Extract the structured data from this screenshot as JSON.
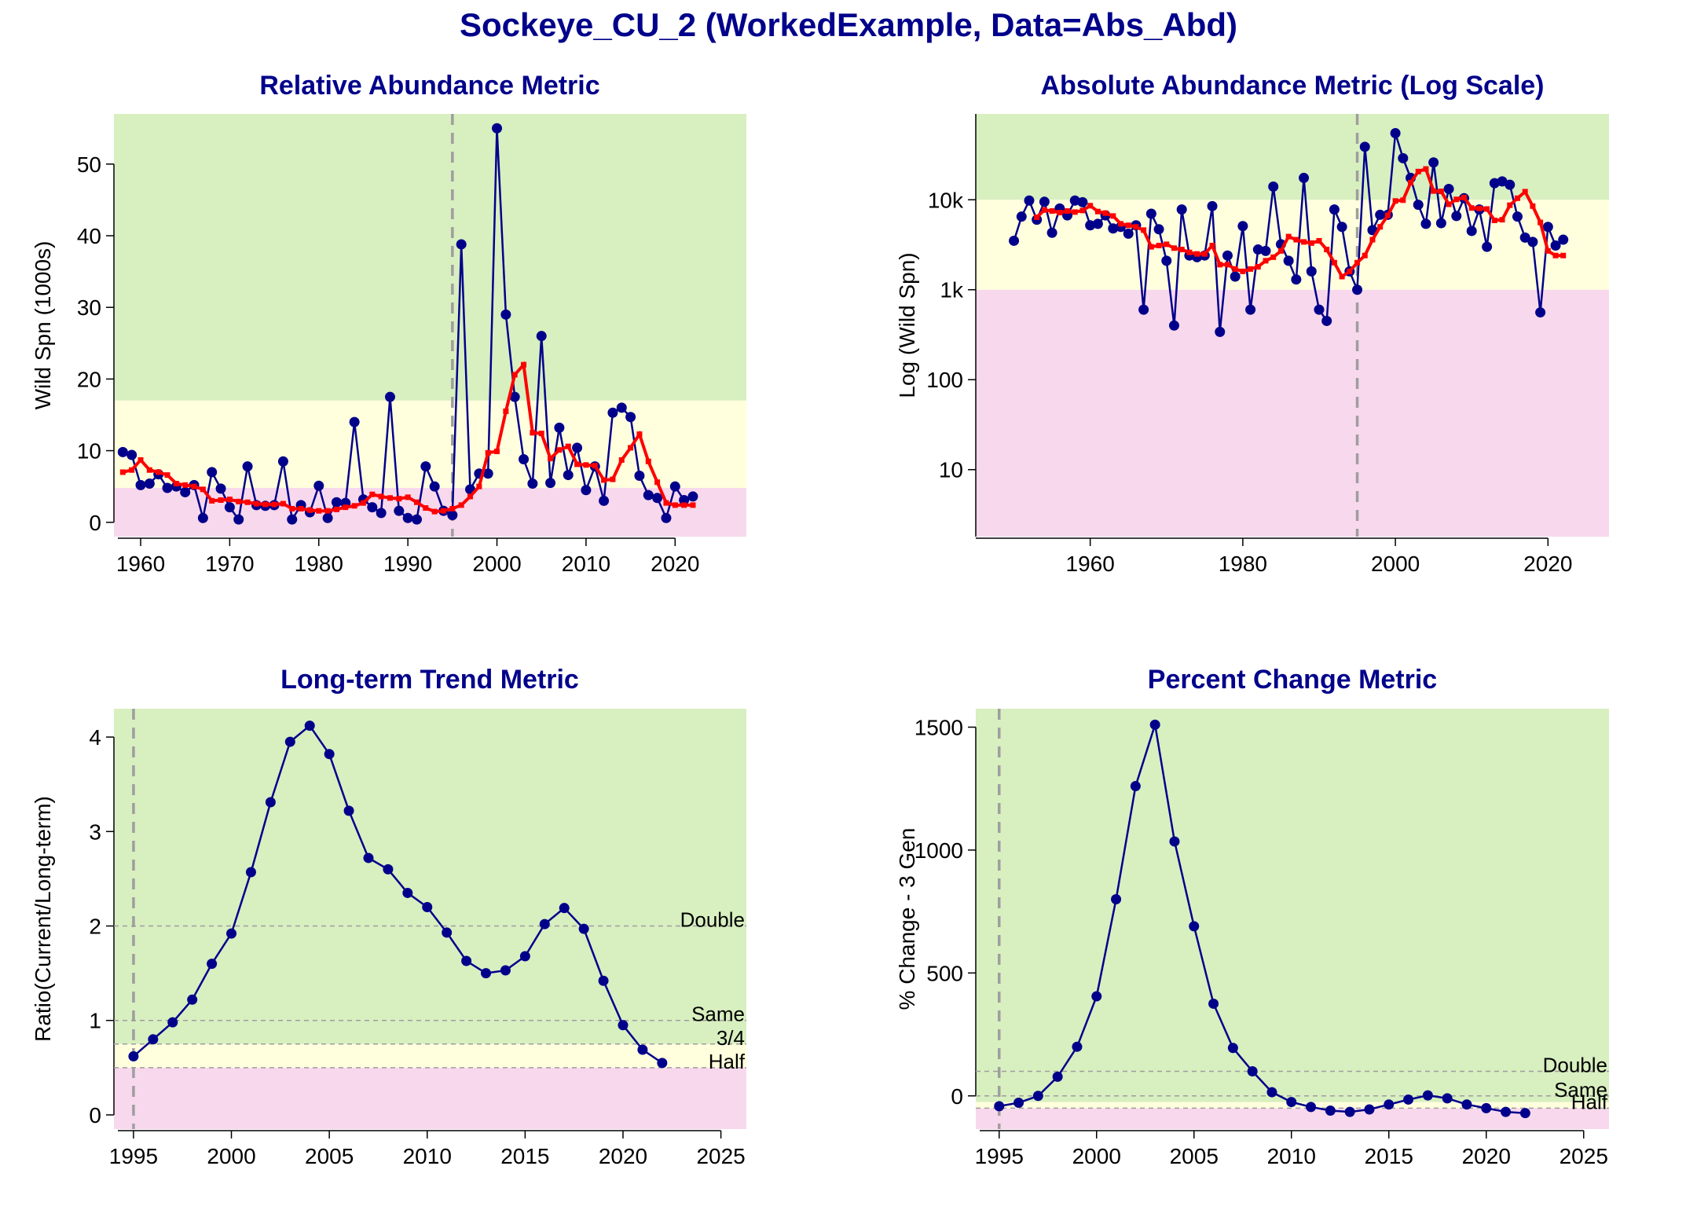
{
  "main_title": "Sockeye_CU_2 (WorkedExample, Data=Abs_Abd)",
  "colors": {
    "green_zone": "#D8EFC0",
    "amber_zone": "#FFFFDD",
    "red_zone": "#F8D8EC",
    "series_main": "#00008B",
    "series_avg": "#FF0000",
    "ref_line": "#9E9E9E",
    "title": "#00008B"
  },
  "chart_data": [
    {
      "type": "line",
      "title": "Relative Abundance Metric",
      "ylabel": "Wild Spn (1000s)",
      "xlabel": "",
      "xlim": [
        1957,
        2028
      ],
      "ylim": [
        -2,
        57
      ],
      "xticks": [
        1960,
        1970,
        1980,
        1990,
        2000,
        2010,
        2020
      ],
      "yticks": [
        0,
        10,
        20,
        30,
        40,
        50
      ],
      "zones": [
        {
          "name": "red",
          "from": -2,
          "to": 4.8
        },
        {
          "name": "amber",
          "from": 4.8,
          "to": 17
        },
        {
          "name": "green",
          "from": 17,
          "to": 57
        }
      ],
      "vline": 1995,
      "series": [
        {
          "role": "main",
          "x": [
            1958,
            1959,
            1960,
            1961,
            1962,
            1963,
            1964,
            1965,
            1966,
            1967,
            1968,
            1969,
            1970,
            1971,
            1972,
            1973,
            1974,
            1975,
            1976,
            1977,
            1978,
            1979,
            1980,
            1981,
            1982,
            1983,
            1984,
            1985,
            1986,
            1987,
            1988,
            1989,
            1990,
            1991,
            1992,
            1993,
            1994,
            1995,
            1996,
            1997,
            1998,
            1999,
            2000,
            2001,
            2002,
            2003,
            2004,
            2005,
            2006,
            2007,
            2008,
            2009,
            2010,
            2011,
            2012,
            2013,
            2014,
            2015,
            2016,
            2017,
            2018,
            2019,
            2020,
            2021,
            2022
          ],
          "values": [
            9.8,
            9.4,
            5.2,
            5.4,
            6.7,
            4.8,
            5.0,
            4.2,
            5.2,
            0.6,
            7.0,
            4.7,
            2.1,
            0.4,
            7.8,
            2.4,
            2.3,
            2.4,
            8.5,
            0.4,
            2.4,
            1.4,
            5.1,
            0.6,
            2.8,
            2.7,
            14.0,
            3.2,
            2.1,
            1.3,
            17.5,
            1.6,
            0.6,
            0.4,
            7.8,
            5.0,
            1.6,
            1.0,
            38.8,
            4.6,
            6.8,
            6.8,
            55.0,
            29.0,
            17.5,
            8.8,
            5.4,
            26.0,
            5.5,
            13.2,
            6.6,
            10.4,
            4.5,
            7.8,
            3.0,
            15.3,
            16.0,
            14.7,
            6.5,
            3.8,
            3.4,
            0.6,
            5.0,
            3.1,
            3.6
          ]
        },
        {
          "role": "average",
          "x": [
            1958,
            1959,
            1960,
            1961,
            1962,
            1963,
            1964,
            1965,
            1966,
            1967,
            1968,
            1969,
            1970,
            1971,
            1972,
            1973,
            1974,
            1975,
            1976,
            1977,
            1978,
            1979,
            1980,
            1981,
            1982,
            1983,
            1984,
            1985,
            1986,
            1987,
            1988,
            1989,
            1990,
            1991,
            1992,
            1993,
            1994,
            1995,
            1996,
            1997,
            1998,
            1999,
            2000,
            2001,
            2002,
            2003,
            2004,
            2005,
            2006,
            2007,
            2008,
            2009,
            2010,
            2011,
            2012,
            2013,
            2014,
            2015,
            2016,
            2017,
            2018,
            2019,
            2020,
            2021,
            2022
          ],
          "values": [
            7.0,
            7.3,
            8.7,
            7.3,
            7.0,
            6.6,
            5.4,
            5.2,
            5.0,
            4.6,
            3.0,
            3.1,
            3.2,
            2.9,
            2.8,
            2.6,
            2.5,
            2.5,
            2.6,
            1.9,
            1.9,
            1.7,
            1.6,
            1.6,
            1.8,
            2.1,
            2.3,
            2.7,
            3.9,
            3.6,
            3.4,
            3.3,
            3.5,
            2.8,
            2.0,
            1.5,
            1.6,
            1.9,
            2.4,
            3.6,
            5.0,
            9.7,
            9.9,
            15.5,
            20.6,
            22.0,
            12.5,
            12.4,
            8.9,
            10.1,
            10.6,
            8.1,
            8.0,
            7.9,
            5.9,
            6.0,
            8.7,
            10.4,
            12.3,
            8.5,
            5.6,
            2.7,
            2.4,
            2.4,
            2.4
          ]
        }
      ]
    },
    {
      "type": "line",
      "title": "Absolute Abundance Metric (Log Scale)",
      "ylabel": "Log (Wild Spn)",
      "xlabel": "",
      "scale": "log",
      "xlim": [
        1945,
        2028
      ],
      "ylim": [
        1.8,
        90000
      ],
      "xticks": [
        1960,
        1980,
        2000,
        2020
      ],
      "yticks": [
        10,
        100,
        1000,
        10000
      ],
      "ytick_labels": [
        "10",
        "100",
        "1k",
        "10k"
      ],
      "zones": [
        {
          "name": "red",
          "from": 1.8,
          "to": 1000
        },
        {
          "name": "amber",
          "from": 1000,
          "to": 10000
        },
        {
          "name": "green",
          "from": 10000,
          "to": 90000
        }
      ],
      "vline": 1995,
      "series": [
        {
          "role": "main",
          "x": [
            1950,
            1951,
            1952,
            1953,
            1954,
            1955,
            1956,
            1957,
            1958,
            1959,
            1960,
            1961,
            1962,
            1963,
            1964,
            1965,
            1966,
            1967,
            1968,
            1969,
            1970,
            1971,
            1972,
            1973,
            1974,
            1975,
            1976,
            1977,
            1978,
            1979,
            1980,
            1981,
            1982,
            1983,
            1984,
            1985,
            1986,
            1987,
            1988,
            1989,
            1990,
            1991,
            1992,
            1993,
            1994,
            1995,
            1996,
            1997,
            1998,
            1999,
            2000,
            2001,
            2002,
            2003,
            2004,
            2005,
            2006,
            2007,
            2008,
            2009,
            2010,
            2011,
            2012,
            2013,
            2014,
            2015,
            2016,
            2017,
            2018,
            2019,
            2020,
            2021,
            2022
          ],
          "values": [
            3500,
            6500,
            9800,
            6000,
            9500,
            4300,
            8000,
            6700,
            9800,
            9400,
            5200,
            5400,
            6700,
            4800,
            5000,
            4200,
            5200,
            600,
            7000,
            4700,
            2100,
            400,
            7800,
            2400,
            2300,
            2400,
            8500,
            340,
            2400,
            1400,
            5100,
            600,
            2800,
            2700,
            14000,
            3200,
            2100,
            1300,
            17500,
            1600,
            600,
            450,
            7800,
            5000,
            1600,
            1000,
            38800,
            4600,
            6800,
            6800,
            55000,
            29000,
            17500,
            8800,
            5400,
            26000,
            5500,
            13200,
            6600,
            10400,
            4500,
            7800,
            3000,
            15300,
            16000,
            14700,
            6500,
            3800,
            3400,
            560,
            5000,
            3100,
            3600
          ]
        },
        {
          "role": "average",
          "x": [
            1953,
            1954,
            1955,
            1956,
            1957,
            1958,
            1959,
            1960,
            1961,
            1962,
            1963,
            1964,
            1965,
            1966,
            1967,
            1968,
            1969,
            1970,
            1971,
            1972,
            1973,
            1974,
            1975,
            1976,
            1977,
            1978,
            1979,
            1980,
            1981,
            1982,
            1983,
            1984,
            1985,
            1986,
            1987,
            1988,
            1989,
            1990,
            1991,
            1992,
            1993,
            1994,
            1995,
            1996,
            1997,
            1998,
            1999,
            2000,
            2001,
            2002,
            2003,
            2004,
            2005,
            2006,
            2007,
            2008,
            2009,
            2010,
            2011,
            2012,
            2013,
            2014,
            2015,
            2016,
            2017,
            2018,
            2019,
            2020,
            2021,
            2022
          ],
          "values": [
            6400,
            7700,
            7500,
            7200,
            7500,
            7300,
            7600,
            8600,
            7400,
            7100,
            6600,
            5400,
            5200,
            5000,
            4600,
            3000,
            3100,
            3200,
            2900,
            2800,
            2600,
            2500,
            2500,
            3100,
            1900,
            1900,
            1700,
            1600,
            1700,
            1800,
            2100,
            2300,
            2700,
            3900,
            3600,
            3400,
            3300,
            3500,
            2800,
            2000,
            1400,
            1600,
            2000,
            2400,
            3600,
            5000,
            6700,
            9700,
            9900,
            15500,
            20600,
            22000,
            12500,
            12400,
            8900,
            10100,
            10600,
            8100,
            8000,
            7900,
            5900,
            6000,
            8700,
            10400,
            12300,
            8500,
            5600,
            2700,
            2400,
            2400
          ]
        }
      ]
    },
    {
      "type": "line",
      "title": "Long-term Trend Metric",
      "ylabel": "Ratio(Current/Long-term)",
      "xlabel": "",
      "xlim": [
        1994,
        2026.3
      ],
      "ylim": [
        -0.15,
        4.3
      ],
      "xticks": [
        1995,
        2000,
        2005,
        2010,
        2015,
        2020,
        2025
      ],
      "yticks": [
        0,
        1,
        2,
        3,
        4
      ],
      "zones": [
        {
          "name": "red",
          "from": -0.15,
          "to": 0.5
        },
        {
          "name": "amber",
          "from": 0.5,
          "to": 0.75
        },
        {
          "name": "green",
          "from": 0.75,
          "to": 4.3
        }
      ],
      "vline": 1995,
      "ref_lines": [
        {
          "value": 2,
          "label": "Double"
        },
        {
          "value": 1,
          "label": "Same"
        },
        {
          "value": 0.75,
          "label": "3/4"
        },
        {
          "value": 0.5,
          "label": "Half"
        }
      ],
      "series": [
        {
          "role": "main",
          "x": [
            1995,
            1996,
            1997,
            1998,
            1999,
            2000,
            2001,
            2002,
            2003,
            2004,
            2005,
            2006,
            2007,
            2008,
            2009,
            2010,
            2011,
            2012,
            2013,
            2014,
            2015,
            2016,
            2017,
            2018,
            2019,
            2020,
            2021,
            2022
          ],
          "values": [
            0.62,
            0.8,
            0.98,
            1.22,
            1.6,
            1.92,
            2.57,
            3.31,
            3.95,
            4.12,
            3.82,
            3.22,
            2.72,
            2.6,
            2.35,
            2.2,
            1.93,
            1.63,
            1.5,
            1.53,
            1.68,
            2.02,
            2.19,
            1.97,
            1.42,
            0.95,
            0.69,
            0.55
          ]
        }
      ]
    },
    {
      "type": "line",
      "title": "Percent Change Metric",
      "ylabel": "% Change - 3 Gen",
      "xlabel": "",
      "xlim": [
        1993.8,
        2026.3
      ],
      "ylim": [
        -135,
        1575
      ],
      "xticks": [
        1995,
        2000,
        2005,
        2010,
        2015,
        2020,
        2025
      ],
      "yticks": [
        0,
        500,
        1000,
        1500
      ],
      "zones": [
        {
          "name": "red",
          "from": -135,
          "to": -50
        },
        {
          "name": "amber",
          "from": -50,
          "to": -25
        },
        {
          "name": "green",
          "from": -25,
          "to": 1575
        }
      ],
      "vline": 1995,
      "ref_lines": [
        {
          "value": 100,
          "label": "Double"
        },
        {
          "value": 0,
          "label": "Same"
        },
        {
          "value": -50,
          "label": "Half"
        }
      ],
      "series": [
        {
          "role": "main",
          "x": [
            1995,
            1996,
            1997,
            1998,
            1999,
            2000,
            2001,
            2002,
            2003,
            2004,
            2005,
            2006,
            2007,
            2008,
            2009,
            2010,
            2011,
            2012,
            2013,
            2014,
            2015,
            2016,
            2017,
            2018,
            2019,
            2020,
            2021,
            2022
          ],
          "values": [
            -42,
            -28,
            0,
            78,
            200,
            405,
            800,
            1260,
            1510,
            1035,
            690,
            375,
            195,
            100,
            15,
            -25,
            -45,
            -60,
            -65,
            -55,
            -35,
            -15,
            2,
            -10,
            -35,
            -50,
            -65,
            -70
          ]
        }
      ]
    }
  ]
}
